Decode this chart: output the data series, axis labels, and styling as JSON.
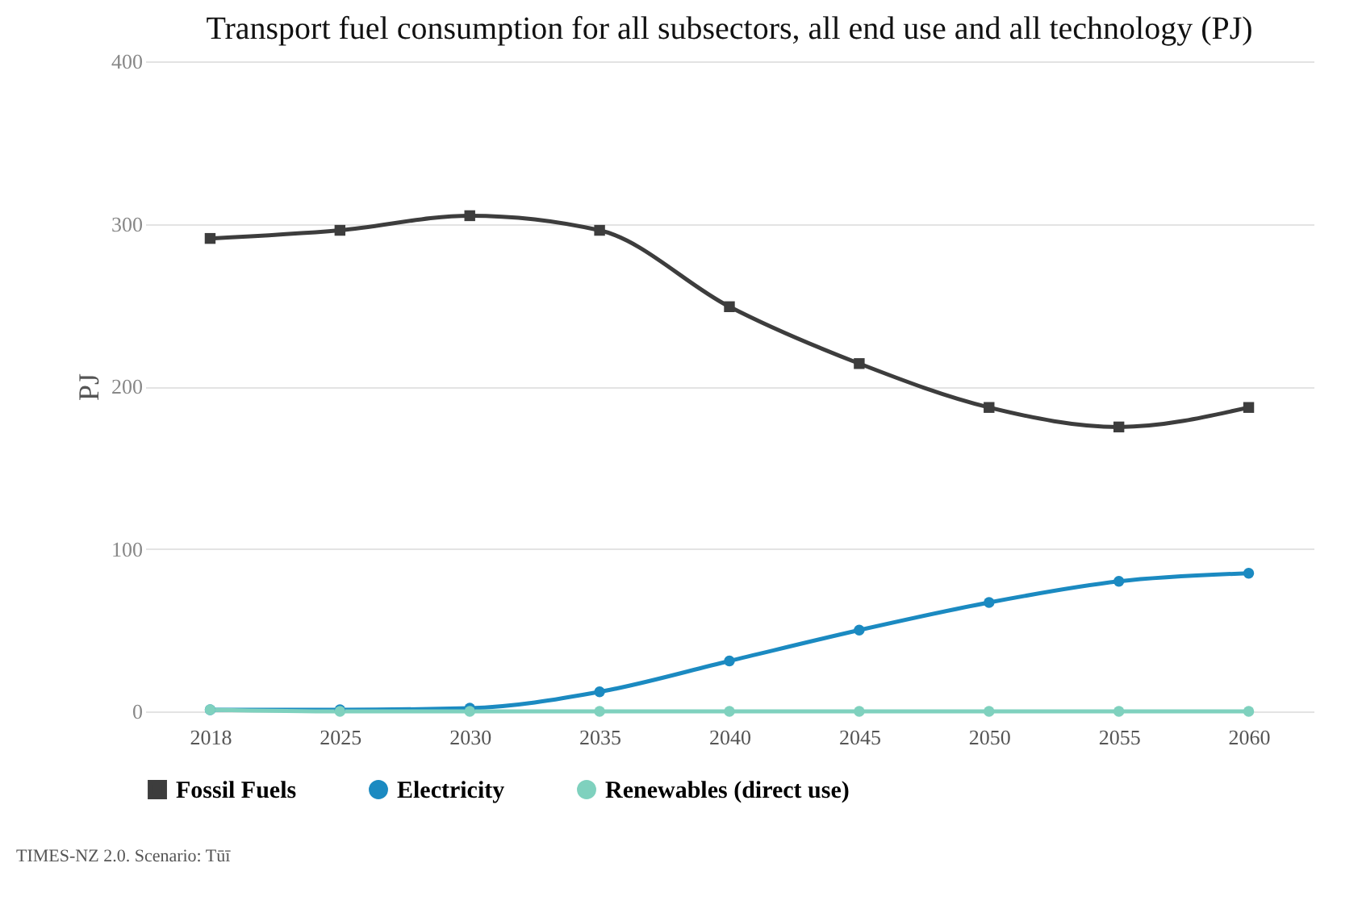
{
  "chart_data": {
    "type": "line",
    "title": "Transport fuel consumption for all subsectors, all end use and all technology (PJ)",
    "ylabel": "PJ",
    "categories": [
      "2018",
      "2025",
      "2030",
      "2035",
      "2040",
      "2045",
      "2050",
      "2055",
      "2060"
    ],
    "series": [
      {
        "name": "Fossil Fuels",
        "color": "#3d3d3d",
        "marker": "square",
        "values": [
          291,
          296,
          305,
          296,
          249,
          214,
          187,
          175,
          187
        ]
      },
      {
        "name": "Electricity",
        "color": "#1b8ac1",
        "marker": "circle",
        "values": [
          1,
          1,
          2,
          12,
          31,
          50,
          67,
          80,
          85
        ]
      },
      {
        "name": "Renewables (direct use)",
        "color": "#7fd1be",
        "marker": "circle",
        "values": [
          1,
          0,
          0,
          0,
          0,
          0,
          0,
          0,
          0
        ]
      }
    ],
    "ylim": [
      0,
      400
    ],
    "yticks": [
      0,
      100,
      200,
      300,
      400
    ],
    "grid": "y",
    "legend": "bottom",
    "line_style": "solid",
    "annotations": [
      "TIMES-NZ 2.0. Scenario: Tūī"
    ]
  }
}
